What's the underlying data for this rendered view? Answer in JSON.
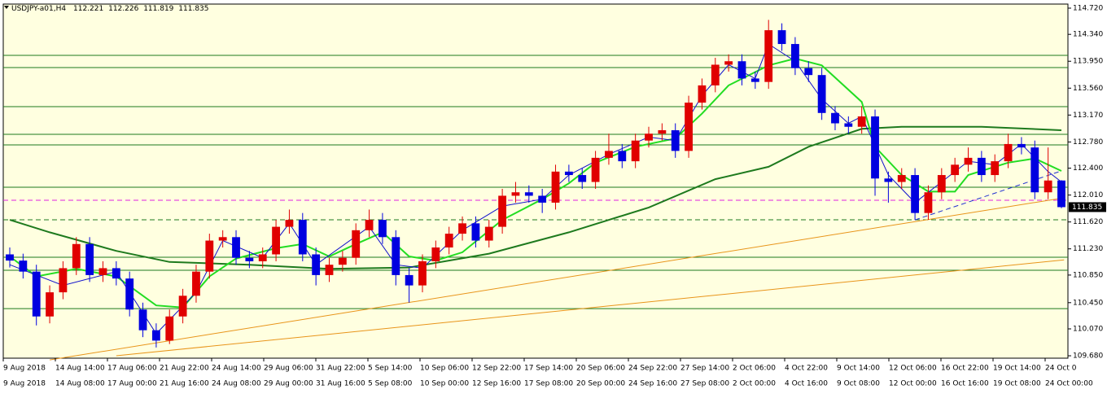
{
  "chart_data": {
    "type": "candlestick",
    "symbol": "USDJPY-a01,H4",
    "ylim": [
      109.645,
      114.779
    ],
    "yticks": [
      {
        "value": 114.72,
        "label": "114.720"
      },
      {
        "value": 114.34,
        "label": "114.340"
      },
      {
        "value": 113.95,
        "label": "113.950"
      },
      {
        "value": 113.56,
        "label": "113.560"
      },
      {
        "value": 113.17,
        "label": "113.170"
      },
      {
        "value": 112.78,
        "label": "112.780"
      },
      {
        "value": 112.4,
        "label": "112.400"
      },
      {
        "value": 112.01,
        "label": "112.010"
      },
      {
        "value": 111.62,
        "label": "111.620"
      },
      {
        "value": 111.23,
        "label": "111.230"
      },
      {
        "value": 110.85,
        "label": "110.850"
      },
      {
        "value": 110.45,
        "label": "110.450"
      },
      {
        "value": 110.07,
        "label": "110.070"
      },
      {
        "value": 109.68,
        "label": "109.680"
      }
    ],
    "time_labels": [
      "9 Aug 2018",
      "14 Aug 14:00",
      "17 Aug 06:00",
      "21 Aug 22:00",
      "24 Aug 14:00",
      "29 Aug 06:00",
      "31 Aug 22:00",
      "5 Sep 14:00",
      "10 Sep 06:00",
      "12 Sep 22:00",
      "17 Sep 14:00",
      "20 Sep 06:00",
      "24 Sep 22:00",
      "27 Sep 14:00",
      "2 Oct 06:00",
      "4 Oct 22:00",
      "9 Oct 14:00",
      "12 Oct 06:00",
      "16 Oct 22:00",
      "19 Oct 14:00",
      "24 Oct 0"
    ],
    "time_labels_2": [
      "9 Aug 2018",
      "14 Aug 08:00",
      "17 Aug 00:00",
      "21 Aug 16:00",
      "24 Aug 08:00",
      "29 Aug 00:00",
      "31 Aug 16:00",
      "5 Sep 08:00",
      "10 Sep 00:00",
      "12 Sep 16:00",
      "17 Sep 08:00",
      "20 Sep 00:00",
      "24 Sep 16:00",
      "27 Sep 08:00",
      "2 Oct 00:00",
      "4 Oct 16:00",
      "9 Oct 08:00",
      "12 Oct 00:00",
      "16 Oct 16:00",
      "19 Oct 08:00",
      "24 Oct 00:00"
    ],
    "bull_color": "#e00000",
    "bear_color": "#0000e0",
    "open": [
      111.15,
      111.06,
      110.9,
      110.25,
      110.6,
      110.95,
      111.3,
      110.85,
      110.95,
      110.8,
      110.35,
      110.05,
      109.9,
      110.25,
      110.55,
      110.9,
      111.35,
      111.4,
      111.1,
      111.05,
      111.15,
      111.55,
      111.65,
      111.15,
      110.85,
      111.0,
      111.1,
      111.5,
      111.65,
      111.4,
      110.85,
      110.7,
      111.05,
      111.25,
      111.45,
      111.6,
      111.35,
      111.55,
      112.0,
      112.05,
      112.0,
      111.9,
      112.35,
      112.3,
      112.2,
      112.55,
      112.65,
      112.5,
      112.8,
      112.9,
      112.95,
      112.65,
      113.35,
      113.6,
      113.9,
      113.95,
      113.7,
      113.65,
      114.4,
      114.2,
      113.85,
      113.75,
      113.2,
      113.05,
      113.0,
      113.15,
      112.25,
      112.2,
      112.3,
      111.75,
      112.05,
      112.3,
      112.45,
      112.55,
      112.3,
      112.5,
      112.75,
      112.7,
      112.05,
      112.221
    ],
    "high": [
      111.25,
      111.16,
      111.0,
      110.7,
      111.05,
      111.4,
      111.4,
      111.05,
      111.05,
      110.9,
      110.45,
      110.15,
      110.35,
      110.65,
      111.0,
      111.45,
      111.5,
      111.5,
      111.2,
      111.25,
      111.65,
      111.8,
      111.75,
      111.25,
      111.1,
      111.2,
      111.6,
      111.8,
      111.75,
      111.5,
      110.95,
      111.15,
      111.35,
      111.55,
      111.7,
      111.7,
      111.65,
      112.1,
      112.2,
      112.15,
      112.1,
      112.45,
      112.45,
      112.4,
      112.65,
      112.9,
      112.75,
      112.9,
      113.0,
      113.05,
      113.05,
      113.45,
      113.7,
      114.0,
      114.05,
      114.05,
      113.8,
      114.55,
      114.5,
      114.3,
      113.95,
      113.85,
      113.3,
      113.15,
      113.3,
      113.25,
      112.35,
      112.4,
      112.4,
      112.15,
      112.4,
      112.55,
      112.7,
      112.65,
      112.6,
      112.9,
      112.85,
      112.8,
      112.7,
      112.226
    ],
    "low": [
      110.96,
      110.8,
      110.12,
      110.15,
      110.5,
      110.85,
      110.75,
      110.75,
      110.7,
      110.25,
      109.95,
      109.8,
      109.85,
      110.15,
      110.45,
      110.8,
      111.25,
      111.0,
      110.95,
      110.95,
      111.05,
      111.45,
      111.05,
      110.7,
      110.75,
      110.9,
      111.0,
      111.4,
      111.3,
      110.7,
      110.45,
      110.6,
      110.95,
      111.15,
      111.35,
      111.25,
      111.25,
      111.45,
      111.9,
      111.9,
      111.75,
      111.8,
      112.2,
      112.1,
      112.1,
      112.45,
      112.4,
      112.4,
      112.7,
      112.8,
      112.55,
      112.55,
      113.25,
      113.5,
      113.8,
      113.6,
      113.55,
      113.55,
      114.1,
      113.75,
      113.65,
      113.1,
      112.95,
      112.9,
      112.9,
      112.0,
      111.9,
      112.1,
      111.65,
      111.65,
      111.95,
      112.2,
      112.35,
      112.2,
      112.2,
      112.4,
      112.6,
      111.95,
      111.95,
      111.819
    ],
    "close": [
      111.06,
      110.9,
      110.25,
      110.6,
      110.95,
      111.3,
      110.85,
      110.95,
      110.8,
      110.35,
      110.05,
      109.9,
      110.25,
      110.55,
      110.9,
      111.35,
      111.4,
      111.1,
      111.05,
      111.15,
      111.55,
      111.65,
      111.15,
      110.85,
      111.0,
      111.1,
      111.5,
      111.65,
      111.4,
      110.85,
      110.7,
      111.05,
      111.25,
      111.45,
      111.6,
      111.35,
      111.55,
      112.0,
      112.05,
      112.0,
      111.9,
      112.35,
      112.3,
      112.2,
      112.55,
      112.65,
      112.5,
      112.8,
      112.9,
      112.95,
      112.65,
      113.35,
      113.6,
      113.9,
      113.95,
      113.7,
      113.65,
      114.4,
      114.2,
      113.85,
      113.75,
      113.2,
      113.05,
      113.0,
      113.15,
      112.25,
      112.2,
      112.3,
      111.75,
      112.05,
      112.3,
      112.45,
      112.55,
      112.3,
      112.5,
      112.75,
      112.7,
      112.05,
      112.221,
      111.835
    ],
    "indicators": [
      {
        "color": "#1e7a1e",
        "x": [
          0,
          3,
          8,
          12,
          18,
          24,
          30,
          36,
          42,
          48,
          53,
          57,
          60,
          64,
          67,
          73,
          79
        ],
        "values": [
          111.65,
          111.47,
          111.2,
          111.04,
          111.0,
          110.94,
          110.96,
          111.16,
          111.47,
          111.83,
          112.24,
          112.42,
          112.71,
          112.97,
          113.0,
          113.0,
          112.95
        ]
      },
      {
        "color": "#22dd22",
        "x": [
          0,
          2,
          5,
          8,
          11,
          13,
          15,
          17,
          20,
          22,
          24,
          26,
          28,
          30,
          32,
          34,
          37,
          40,
          42,
          44,
          47,
          50,
          52,
          54,
          57,
          59,
          61,
          64,
          65,
          67,
          69,
          71,
          72,
          75,
          77,
          79
        ],
        "values": [
          111.12,
          110.83,
          110.94,
          110.83,
          110.41,
          110.38,
          110.83,
          111.09,
          111.24,
          111.3,
          111.12,
          111.3,
          111.47,
          111.12,
          111.06,
          111.18,
          111.65,
          111.95,
          112.18,
          112.48,
          112.71,
          112.83,
          113.19,
          113.6,
          113.89,
          113.99,
          113.89,
          113.36,
          112.71,
          112.3,
          112.06,
          112.06,
          112.3,
          112.48,
          112.54,
          112.36
        ]
      },
      {
        "color": "#1010cc",
        "x": [
          0,
          4,
          8,
          11,
          14,
          16,
          19,
          21,
          23,
          27,
          29,
          31,
          34,
          37,
          40,
          42,
          45,
          48,
          50,
          52,
          54,
          56,
          57,
          59,
          61,
          63,
          64,
          66,
          68,
          70,
          72,
          74,
          76,
          78,
          79
        ],
        "values": [
          111.0,
          110.7,
          110.9,
          110.0,
          110.6,
          111.35,
          111.1,
          111.6,
          111.0,
          111.55,
          111.0,
          110.95,
          111.5,
          111.85,
          111.95,
          112.3,
          112.6,
          112.85,
          112.8,
          113.45,
          113.9,
          113.7,
          114.2,
          113.95,
          113.4,
          113.05,
          113.15,
          112.3,
          111.9,
          112.2,
          112.5,
          112.45,
          112.75,
          112.35,
          112.2
        ]
      }
    ],
    "levels": [
      {
        "value": 114.035,
        "color": "#1e7a1e",
        "dash": false
      },
      {
        "value": 113.858,
        "color": "#1e7a1e",
        "dash": false
      },
      {
        "value": 113.292,
        "color": "#1e7a1e",
        "dash": false
      },
      {
        "value": 112.89,
        "color": "#1e7a1e",
        "dash": false
      },
      {
        "value": 112.737,
        "color": "#1e7a1e",
        "dash": false
      },
      {
        "value": 112.123,
        "color": "#1e7a1e",
        "dash": false
      },
      {
        "value": 111.934,
        "color": "#e020e0",
        "dash": true
      },
      {
        "value": 111.651,
        "color": "#1e7a1e",
        "dash": true
      },
      {
        "value": 111.108,
        "color": "#1e7a1e",
        "dash": false
      },
      {
        "value": 110.919,
        "color": "#1e7a1e",
        "dash": false
      },
      {
        "value": 110.364,
        "color": "#1e7a1e",
        "dash": false
      }
    ],
    "trendlines": [
      {
        "color": "#e8941a",
        "dash": false,
        "x": [
          3,
          79.2
        ],
        "values": [
          109.62,
          111.97
        ]
      },
      {
        "color": "#e8941a",
        "dash": false,
        "x": [
          8,
          79.2
        ],
        "values": [
          109.68,
          111.07
        ]
      },
      {
        "color": "#2030d0",
        "dash": true,
        "x": [
          68,
          79
        ],
        "values": [
          111.65,
          112.36
        ]
      }
    ]
  }
}
